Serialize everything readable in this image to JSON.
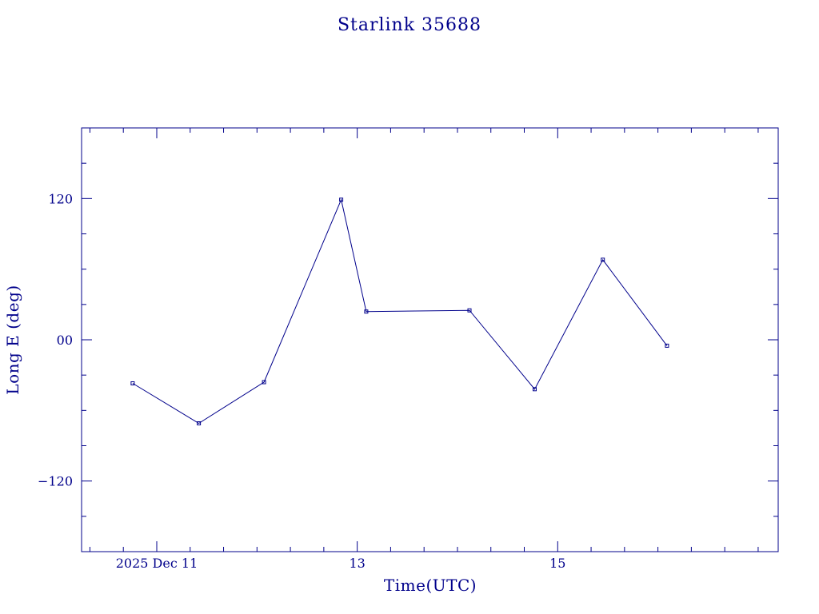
{
  "chart_data": {
    "type": "line",
    "title": "Starlink 35688",
    "xlabel": "Time(UTC)",
    "ylabel": "Long E (deg)",
    "x_unit": "days (Dec 2025)",
    "xlim": [
      10.25,
      17.2
    ],
    "ylim": [
      -180,
      180
    ],
    "grid": false,
    "x_ticks": [
      {
        "value": 11,
        "label": "2025 Dec 11"
      },
      {
        "value": 13,
        "label": "13"
      },
      {
        "value": 15,
        "label": "15"
      }
    ],
    "y_ticks": [
      {
        "value": 120,
        "label": "120"
      },
      {
        "value": 0,
        "label": "00"
      },
      {
        "value": -120,
        "label": "−120"
      }
    ],
    "x_minor_step": 0.333333,
    "y_minor_step": 30,
    "series": [
      {
        "x": [
          10.76,
          11.42,
          12.07,
          12.84,
          13.09,
          14.12,
          14.77,
          15.45,
          16.09
        ],
        "y": [
          -37,
          -71,
          -36,
          119,
          24,
          25,
          -42,
          68,
          -5
        ]
      }
    ]
  }
}
